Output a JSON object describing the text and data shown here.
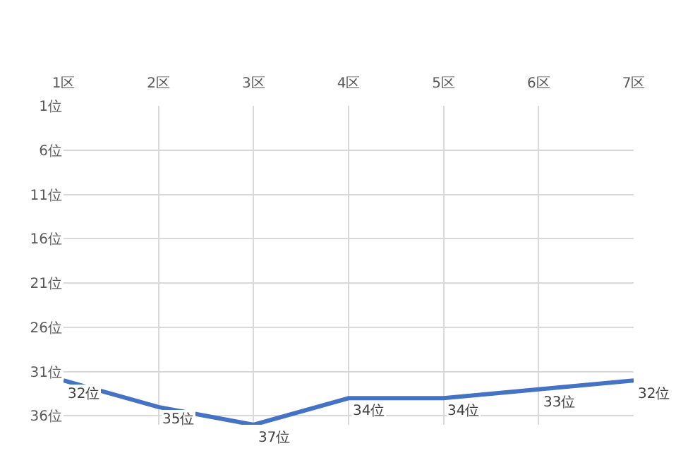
{
  "chart_data": {
    "type": "line",
    "categories": [
      "1区",
      "2区",
      "3区",
      "4区",
      "5区",
      "6区",
      "7区"
    ],
    "series": [
      {
        "color": "#4472c4",
        "values": [
          32,
          35,
          37,
          34,
          34,
          33,
          32
        ],
        "value_labels": [
          "32位",
          "35位",
          "37位",
          "34位",
          "34位",
          "33位",
          "32位"
        ]
      }
    ],
    "ylim": [
      37,
      1
    ],
    "yticks": [
      {
        "value": 1,
        "label": "1位"
      },
      {
        "value": 6,
        "label": "6位"
      },
      {
        "value": 11,
        "label": "11位"
      },
      {
        "value": 16,
        "label": "16位"
      },
      {
        "value": 21,
        "label": "21位"
      },
      {
        "value": 26,
        "label": "26位"
      },
      {
        "value": 31,
        "label": "31位"
      },
      {
        "value": 36,
        "label": "36位"
      }
    ],
    "grid": true,
    "marker": "none",
    "line_style": "solid"
  }
}
